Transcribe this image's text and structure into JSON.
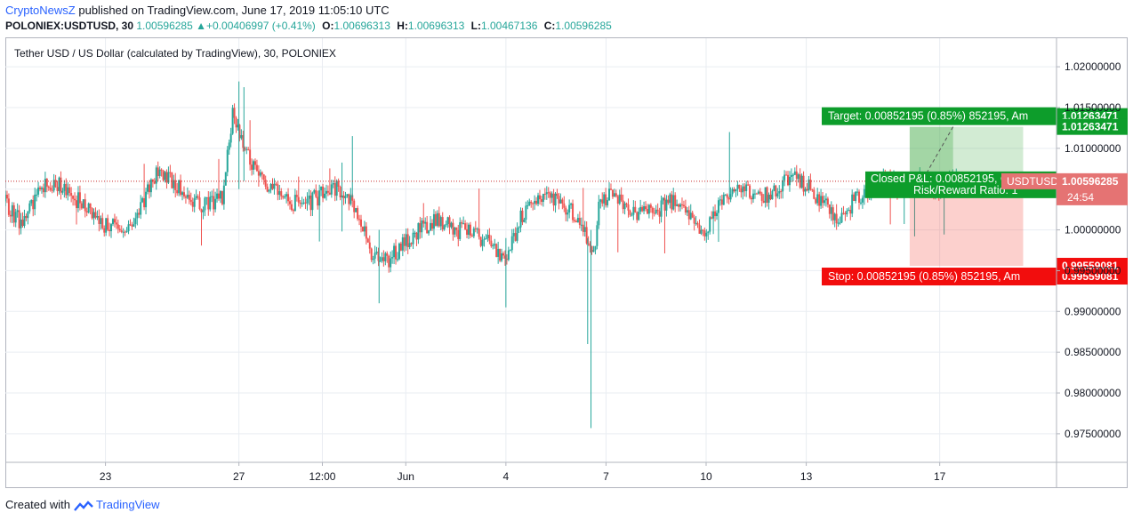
{
  "header": {
    "brand": "CryptoNewsZ",
    "published": " published on TradingView.com, June 17, 2019 11:05:10 UTC",
    "symbol": "POLONIEX:USDTUSD, 30",
    "last": "1.00596285",
    "change": "+0.00406997 (+0.41%)",
    "o_label": "O:",
    "o": "1.00696313",
    "h_label": "H:",
    "h": "1.00696313",
    "l_label": "L:",
    "l": "1.00467136",
    "c_label": "C:",
    "c": "1.00596285"
  },
  "footer": {
    "created": "Created with",
    "tv": "TradingView"
  },
  "colors": {
    "up": "#26a69a",
    "down": "#ef5350",
    "grid": "#e9edf2",
    "target_green": "#0d9d2b",
    "stop_red": "#f20d0d",
    "dark": "#4a4a4a",
    "price_line": "#c62828"
  },
  "chart_data": {
    "type": "candlestick",
    "title": "Tether USD / US Dollar (calculated by TradingView), 30, POLONIEX",
    "ylim": [
      0.9715,
      1.0235
    ],
    "y_ticks": [
      1.02,
      1.015,
      1.01,
      1.005,
      1.0,
      0.995,
      0.99,
      0.985,
      0.98,
      0.975
    ],
    "y_tick_labels": [
      "1.02000000",
      "1.01500000",
      "1.01000000",
      "1.00500000",
      "1.00000000",
      "0.99500000",
      "0.99000000",
      "0.98500000",
      "0.98000000",
      "0.97500000"
    ],
    "x_ticks": [
      {
        "label": "23",
        "day": 3
      },
      {
        "label": "27",
        "day": 7
      },
      {
        "label": "12:00",
        "day": 9.5
      },
      {
        "label": "Jun",
        "day": 12
      },
      {
        "label": "4",
        "day": 15
      },
      {
        "label": "7",
        "day": 18
      },
      {
        "label": "10",
        "day": 21
      },
      {
        "label": "13",
        "day": 24
      },
      {
        "label": "17",
        "day": 28
      }
    ],
    "x_range_days": [
      0,
      31.5
    ],
    "series": [
      {
        "values": [
          [
            0.0,
            1.0035
          ],
          [
            0.5,
            1.0005
          ],
          [
            1.0,
            1.005
          ],
          [
            1.5,
            1.006
          ],
          [
            2.0,
            1.004
          ],
          [
            2.5,
            1.003
          ],
          [
            3.0,
            1.0005
          ],
          [
            3.5,
            1.0
          ],
          [
            4.0,
            1.002
          ],
          [
            4.5,
            1.007
          ],
          [
            5.0,
            1.006
          ],
          [
            5.5,
            1.0035
          ],
          [
            6.0,
            1.003
          ],
          [
            6.5,
            1.004
          ],
          [
            6.8,
            1.014
          ],
          [
            7.0,
            1.012
          ],
          [
            7.3,
            1.009
          ],
          [
            7.6,
            1.0065
          ],
          [
            8.0,
            1.005
          ],
          [
            8.5,
            1.0035
          ],
          [
            9.0,
            1.003
          ],
          [
            9.5,
            1.0045
          ],
          [
            10.0,
            1.005
          ],
          [
            10.5,
            1.003
          ],
          [
            11.0,
            0.997
          ],
          [
            11.5,
            0.9965
          ],
          [
            12.0,
            0.9985
          ],
          [
            12.5,
            1.0005
          ],
          [
            13.0,
            1.001
          ],
          [
            13.5,
            1.0
          ],
          [
            14.0,
            0.9995
          ],
          [
            14.5,
            0.9985
          ],
          [
            15.0,
            0.9965
          ],
          [
            15.5,
            1.002
          ],
          [
            16.0,
            1.004
          ],
          [
            16.5,
            1.0035
          ],
          [
            17.0,
            1.002
          ],
          [
            17.3,
            1.001
          ],
          [
            17.6,
            0.996
          ],
          [
            17.8,
            1.003
          ],
          [
            18.2,
            1.0045
          ],
          [
            18.6,
            1.003
          ],
          [
            19.0,
            1.002
          ],
          [
            19.5,
            1.0025
          ],
          [
            20.0,
            1.0035
          ],
          [
            20.5,
            1.002
          ],
          [
            21.0,
            0.9995
          ],
          [
            21.5,
            1.004
          ],
          [
            22.0,
            1.005
          ],
          [
            22.5,
            1.004
          ],
          [
            23.0,
            1.0045
          ],
          [
            23.5,
            1.0065
          ],
          [
            24.0,
            1.0055
          ],
          [
            24.5,
            1.0035
          ],
          [
            25.0,
            1.001
          ],
          [
            25.5,
            1.004
          ],
          [
            26.0,
            1.005
          ],
          [
            26.5,
            1.006
          ],
          [
            27.0,
            1.005
          ],
          [
            27.5,
            1.006
          ],
          [
            28.0,
            1.005
          ],
          [
            28.5,
            1.006
          ]
        ]
      }
    ],
    "price_line": {
      "label": "USDTUSD",
      "value": "1.00596285",
      "countdown": "24:54"
    },
    "position": {
      "target_label": "Target: 0.00852195 (0.85%) 852195, Am",
      "target_price": "1.01263471",
      "entry_price": "1.00411276",
      "stop_label": "Stop: 0.00852195 (0.85%) 852195, Am",
      "stop_price": "0.99559081",
      "pnl_label": "Closed P&L: 0.00852195, Qty: 293",
      "ratio_label": "Risk/Reward Ratio: 1",
      "target_value": 1.01263471,
      "entry_value": 1.00411276,
      "stop_value": 0.99559081,
      "day_start": 27.1,
      "day_end": 30.5
    }
  }
}
